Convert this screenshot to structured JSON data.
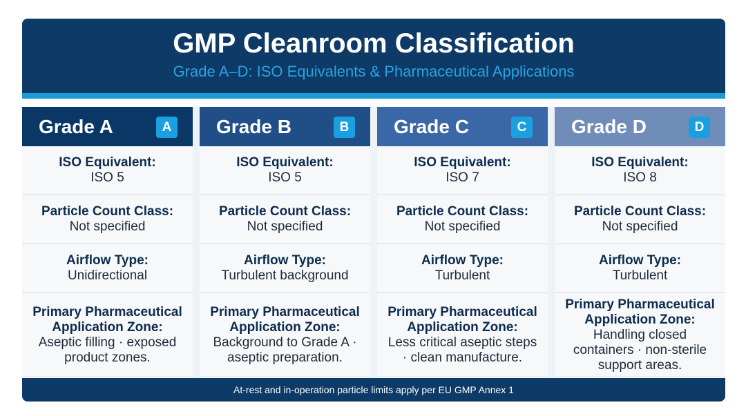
{
  "header": {
    "title": "GMP Cleanroom Classification",
    "subtitle": "Grade A–D: ISO Equivalents & Pharmaceutical Applications"
  },
  "columns": [
    {
      "grade": "Grade A",
      "badge": "A",
      "fields": [
        {
          "label": "ISO Equivalent:",
          "value": "ISO 5"
        },
        {
          "label": "Particle Count Class:",
          "value": "Not specified"
        },
        {
          "label": "Airflow Type:",
          "value": "Unidirectional"
        },
        {
          "label": "Primary Pharmaceutical Application Zone:",
          "value": "Aseptic filling · exposed product zones."
        }
      ]
    },
    {
      "grade": "Grade B",
      "badge": "B",
      "fields": [
        {
          "label": "ISO Equivalent:",
          "value": "ISO 5"
        },
        {
          "label": "Particle Count Class:",
          "value": "Not specified"
        },
        {
          "label": "Airflow Type:",
          "value": "Turbulent background"
        },
        {
          "label": "Primary Pharmaceutical Application Zone:",
          "value": "Background to Grade A · aseptic preparation."
        }
      ]
    },
    {
      "grade": "Grade C",
      "badge": "C",
      "fields": [
        {
          "label": "ISO Equivalent:",
          "value": "ISO 7"
        },
        {
          "label": "Particle Count Class:",
          "value": "Not specified"
        },
        {
          "label": "Airflow Type:",
          "value": "Turbulent"
        },
        {
          "label": "Primary Pharmaceutical Application Zone:",
          "value": "Less critical aseptic steps · clean manufacture."
        }
      ]
    },
    {
      "grade": "Grade D",
      "badge": "D",
      "fields": [
        {
          "label": "ISO Equivalent:",
          "value": "ISO 8"
        },
        {
          "label": "Particle Count Class:",
          "value": "Not specified"
        },
        {
          "label": "Airflow Type:",
          "value": "Turbulent"
        },
        {
          "label": "Primary Pharmaceutical Application Zone:",
          "value": "Handling closed containers · non-sterile support areas."
        }
      ]
    }
  ],
  "footer": "At-rest and in-operation particle limits apply per EU GMP Annex 1"
}
